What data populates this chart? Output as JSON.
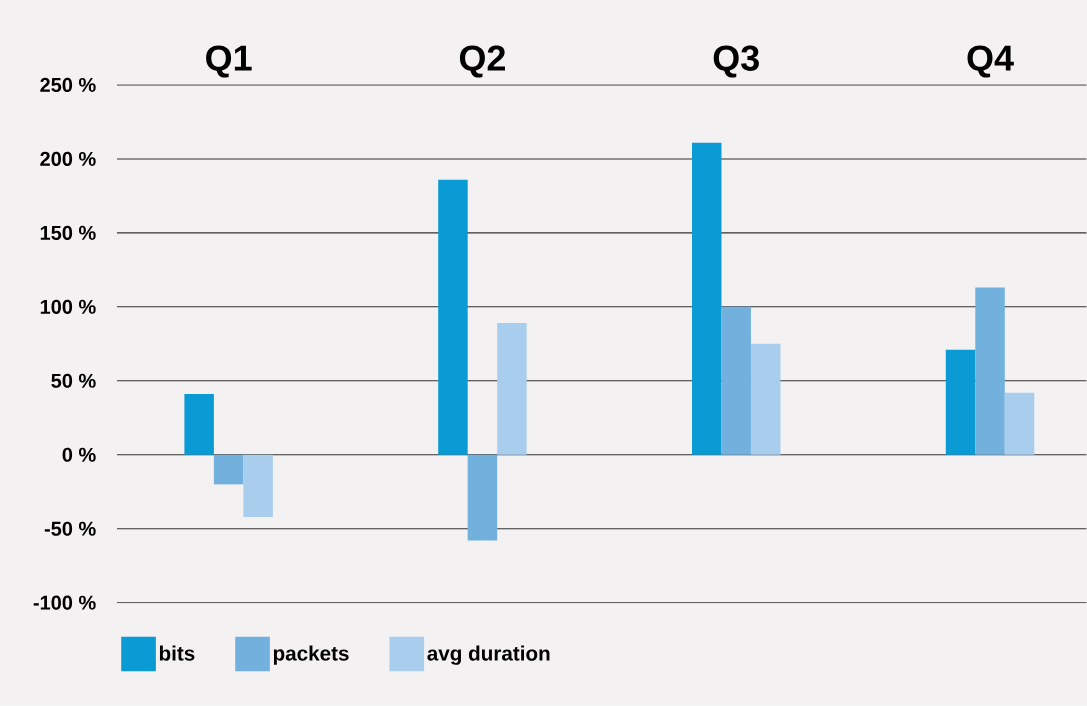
{
  "chart_data": {
    "type": "bar",
    "categories": [
      "Q1",
      "Q2",
      "Q3",
      "Q4"
    ],
    "series": [
      {
        "name": "bits",
        "color": "#0a9bd5",
        "values": [
          41,
          186,
          211,
          71
        ]
      },
      {
        "name": "packets",
        "color": "#72b1de",
        "values": [
          -20,
          -58,
          100,
          113
        ]
      },
      {
        "name": "avg duration",
        "color": "#a9cdec",
        "values": [
          -42,
          89,
          75,
          42
        ]
      }
    ],
    "ylim": [
      -100,
      250
    ],
    "yticks": [
      {
        "value": -100,
        "label": "-100 %"
      },
      {
        "value": -50,
        "label": "-50 %"
      },
      {
        "value": 0,
        "label": "0 %"
      },
      {
        "value": 50,
        "label": "50 %"
      },
      {
        "value": 100,
        "label": "100 %"
      },
      {
        "value": 150,
        "label": "150 %"
      },
      {
        "value": 200,
        "label": "200 %"
      },
      {
        "value": 250,
        "label": "250 %"
      }
    ],
    "grid": "y",
    "legend": "bottom"
  }
}
